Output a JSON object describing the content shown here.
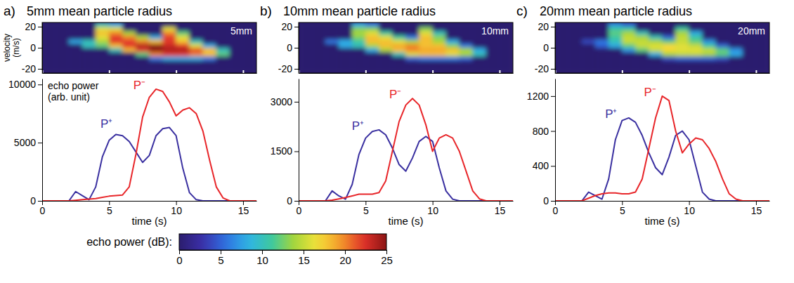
{
  "chart_data": [
    {
      "type": "heatmap",
      "letter": "a)",
      "title": "5mm mean particle radius",
      "label": "5mm",
      "y_label": "velocity (m/s)",
      "xlim": [
        0,
        16
      ],
      "xticks": [
        0,
        5,
        10,
        15
      ],
      "ylim": [
        -24,
        24
      ],
      "yticks": [
        -20,
        0,
        20
      ],
      "tick_labels": "y",
      "cells": {
        "x": [
          0,
          1,
          2,
          3,
          4,
          5,
          6,
          7,
          8,
          9,
          10,
          11,
          12,
          13,
          14,
          15,
          16
        ],
        "y": [
          -24,
          -20,
          -16,
          -12,
          -8,
          -4,
          0,
          4,
          8,
          12,
          16,
          20,
          24
        ],
        "z": [
          [
            0,
            0,
            0,
            0,
            0,
            0,
            0,
            0,
            0,
            0,
            0,
            0,
            0,
            0,
            0,
            0
          ],
          [
            0,
            0,
            0,
            0,
            0,
            0,
            0,
            0,
            0,
            0,
            0,
            0,
            0,
            0,
            0,
            0
          ],
          [
            0,
            0,
            0,
            0,
            0,
            0,
            0,
            0,
            0,
            0,
            0,
            0,
            0,
            0,
            0,
            0
          ],
          [
            0,
            0,
            0,
            0,
            0,
            0,
            0,
            0,
            6,
            8,
            8,
            8,
            6,
            0,
            0,
            0
          ],
          [
            0,
            0,
            0,
            0,
            0,
            0,
            0,
            12,
            20,
            22,
            22,
            20,
            18,
            12,
            0,
            0
          ],
          [
            0,
            0,
            0,
            0,
            0,
            10,
            18,
            22,
            25,
            24,
            24,
            22,
            18,
            10,
            0,
            0
          ],
          [
            0,
            0,
            0,
            10,
            12,
            18,
            22,
            24,
            25,
            23,
            22,
            16,
            8,
            0,
            0,
            0
          ],
          [
            0,
            0,
            8,
            10,
            14,
            22,
            22,
            20,
            18,
            22,
            18,
            10,
            0,
            0,
            0,
            0
          ],
          [
            0,
            0,
            0,
            0,
            16,
            22,
            20,
            14,
            8,
            22,
            16,
            0,
            0,
            0,
            0,
            0
          ],
          [
            0,
            0,
            0,
            0,
            18,
            20,
            14,
            0,
            0,
            20,
            12,
            0,
            0,
            0,
            0,
            0
          ],
          [
            0,
            0,
            0,
            0,
            16,
            16,
            0,
            0,
            0,
            16,
            0,
            0,
            0,
            0,
            0,
            0
          ],
          [
            0,
            0,
            0,
            0,
            10,
            8,
            0,
            0,
            0,
            0,
            0,
            0,
            0,
            0,
            0,
            0
          ]
        ]
      }
    },
    {
      "type": "line",
      "annotation": [
        "echo power",
        "(arb. unit)"
      ],
      "x_label": "time (s)",
      "xlim": [
        0,
        16
      ],
      "xticks": [
        0,
        5,
        10,
        15
      ],
      "ylim": [
        0,
        10500
      ],
      "yticks": [
        0,
        5000,
        10000
      ],
      "x": [
        0,
        0.5,
        1,
        1.5,
        2,
        2.5,
        3,
        3.5,
        4,
        4.5,
        5,
        5.5,
        6,
        6.5,
        7,
        7.5,
        8,
        8.5,
        9,
        9.5,
        10,
        10.5,
        11,
        11.5,
        12,
        12.5,
        13,
        13.5,
        14,
        14.5,
        15,
        15.5,
        16
      ],
      "series": [
        {
          "name": "P⁺",
          "color": "#3a30a0",
          "values": [
            0,
            0,
            0,
            0,
            0,
            800,
            450,
            100,
            1200,
            3800,
            5200,
            5700,
            5600,
            5100,
            4200,
            3300,
            3900,
            5600,
            6200,
            6300,
            5600,
            2800,
            700,
            100,
            0,
            0,
            0,
            0,
            0,
            0,
            0,
            0,
            0
          ]
        },
        {
          "name": "P⁻",
          "color": "#e8262a",
          "values": [
            0,
            0,
            0,
            0,
            0,
            50,
            100,
            150,
            200,
            300,
            400,
            450,
            500,
            1200,
            4000,
            7200,
            8900,
            9600,
            9400,
            8500,
            7300,
            7800,
            8000,
            7500,
            6000,
            3500,
            1200,
            250,
            0,
            0,
            0,
            0,
            0
          ]
        }
      ]
    },
    {
      "type": "heatmap",
      "letter": "b)",
      "title": "10mm mean particle radius",
      "label": "10mm",
      "xlim": [
        0,
        16
      ],
      "xticks": [
        0,
        5,
        10,
        15
      ],
      "ylim": [
        -24,
        24
      ],
      "yticks": [
        -20,
        0,
        20
      ],
      "tick_labels": "y",
      "cells": {
        "x": [
          0,
          1,
          2,
          3,
          4,
          5,
          6,
          7,
          8,
          9,
          10,
          11,
          12,
          13,
          14,
          15,
          16
        ],
        "y": [
          -24,
          -20,
          -16,
          -12,
          -8,
          -4,
          0,
          4,
          8,
          12,
          16,
          20,
          24
        ],
        "z": [
          [
            0,
            0,
            0,
            0,
            0,
            0,
            0,
            0,
            0,
            0,
            0,
            0,
            0,
            0,
            0,
            0
          ],
          [
            0,
            0,
            0,
            0,
            0,
            0,
            0,
            0,
            0,
            0,
            0,
            0,
            0,
            0,
            0,
            0
          ],
          [
            0,
            0,
            0,
            0,
            0,
            0,
            0,
            0,
            0,
            0,
            0,
            0,
            0,
            0,
            0,
            0
          ],
          [
            0,
            0,
            0,
            0,
            0,
            0,
            0,
            0,
            5,
            6,
            6,
            6,
            5,
            0,
            0,
            0
          ],
          [
            0,
            0,
            0,
            0,
            0,
            0,
            0,
            10,
            16,
            18,
            18,
            16,
            14,
            10,
            0,
            0
          ],
          [
            0,
            0,
            0,
            0,
            0,
            8,
            14,
            18,
            20,
            19,
            19,
            18,
            14,
            8,
            0,
            0
          ],
          [
            0,
            0,
            0,
            8,
            10,
            14,
            18,
            19,
            20,
            18,
            18,
            13,
            6,
            0,
            0,
            0
          ],
          [
            0,
            0,
            6,
            8,
            11,
            18,
            18,
            16,
            14,
            18,
            14,
            8,
            0,
            0,
            0,
            0
          ],
          [
            0,
            0,
            0,
            0,
            13,
            18,
            16,
            11,
            6,
            18,
            13,
            0,
            0,
            0,
            0,
            0
          ],
          [
            0,
            0,
            0,
            0,
            14,
            16,
            11,
            0,
            0,
            16,
            10,
            0,
            0,
            0,
            0,
            0
          ],
          [
            0,
            0,
            0,
            0,
            13,
            13,
            0,
            0,
            0,
            13,
            0,
            0,
            0,
            0,
            0,
            0
          ],
          [
            0,
            0,
            0,
            0,
            8,
            6,
            0,
            0,
            0,
            0,
            0,
            0,
            0,
            0,
            0,
            0
          ]
        ]
      }
    },
    {
      "type": "line",
      "x_label": "time (s)",
      "xlim": [
        0,
        16
      ],
      "xticks": [
        0,
        5,
        10,
        15
      ],
      "ylim": [
        0,
        3700
      ],
      "yticks": [
        0,
        1500,
        3000
      ],
      "x": [
        0,
        0.5,
        1,
        1.5,
        2,
        2.5,
        3,
        3.5,
        4,
        4.5,
        5,
        5.5,
        6,
        6.5,
        7,
        7.5,
        8,
        8.5,
        9,
        9.5,
        10,
        10.5,
        11,
        11.5,
        12,
        12.5,
        13,
        13.5,
        14,
        14.5,
        15,
        15.5,
        16
      ],
      "series": [
        {
          "name": "P⁺",
          "color": "#3a30a0",
          "values": [
            0,
            0,
            0,
            0,
            0,
            300,
            150,
            50,
            500,
            1400,
            1900,
            2100,
            2150,
            2000,
            1600,
            1100,
            900,
            1300,
            1800,
            1950,
            1800,
            1000,
            300,
            50,
            0,
            0,
            0,
            0,
            0,
            0,
            0,
            0,
            0
          ]
        },
        {
          "name": "P⁻",
          "color": "#e8262a",
          "values": [
            0,
            0,
            0,
            0,
            0,
            20,
            60,
            100,
            150,
            200,
            200,
            200,
            250,
            600,
            1500,
            2400,
            2900,
            3100,
            2900,
            2300,
            1500,
            1900,
            2000,
            1900,
            1500,
            900,
            300,
            60,
            0,
            0,
            0,
            0,
            0
          ]
        }
      ]
    },
    {
      "type": "heatmap",
      "letter": "c)",
      "title": "20mm mean particle radius",
      "label": "20mm",
      "xlim": [
        0,
        16
      ],
      "xticks": [
        0,
        5,
        10,
        15
      ],
      "ylim": [
        -24,
        24
      ],
      "yticks": [
        -20,
        0,
        20
      ],
      "tick_labels": "y",
      "cells": {
        "x": [
          0,
          1,
          2,
          3,
          4,
          5,
          6,
          7,
          8,
          9,
          10,
          11,
          12,
          13,
          14,
          15,
          16
        ],
        "y": [
          -24,
          -20,
          -16,
          -12,
          -8,
          -4,
          0,
          4,
          8,
          12,
          16,
          20,
          24
        ],
        "z": [
          [
            0,
            0,
            0,
            0,
            0,
            0,
            0,
            0,
            0,
            0,
            0,
            0,
            0,
            0,
            0,
            0
          ],
          [
            0,
            0,
            0,
            0,
            0,
            0,
            0,
            0,
            0,
            0,
            0,
            0,
            0,
            0,
            0,
            0
          ],
          [
            0,
            0,
            0,
            0,
            0,
            0,
            0,
            0,
            0,
            0,
            0,
            0,
            0,
            0,
            0,
            0
          ],
          [
            0,
            0,
            0,
            0,
            0,
            0,
            0,
            0,
            4,
            5,
            5,
            5,
            4,
            0,
            0,
            0
          ],
          [
            0,
            0,
            0,
            0,
            0,
            0,
            0,
            8,
            14,
            15,
            15,
            14,
            12,
            8,
            0,
            0
          ],
          [
            0,
            0,
            0,
            0,
            0,
            7,
            12,
            15,
            17,
            16,
            16,
            15,
            12,
            7,
            0,
            0
          ],
          [
            0,
            0,
            0,
            5,
            8,
            12,
            15,
            16,
            17,
            16,
            15,
            11,
            5,
            0,
            0,
            0
          ],
          [
            0,
            0,
            4,
            6,
            10,
            15,
            15,
            14,
            12,
            15,
            12,
            7,
            0,
            0,
            0,
            0
          ],
          [
            0,
            0,
            0,
            0,
            11,
            15,
            14,
            10,
            5,
            15,
            11,
            0,
            0,
            0,
            0,
            0
          ],
          [
            0,
            0,
            0,
            0,
            12,
            14,
            10,
            0,
            0,
            14,
            8,
            0,
            0,
            0,
            0,
            0
          ],
          [
            0,
            0,
            0,
            0,
            11,
            11,
            0,
            0,
            0,
            11,
            0,
            0,
            0,
            0,
            0,
            0
          ],
          [
            0,
            0,
            0,
            0,
            7,
            5,
            0,
            0,
            0,
            0,
            0,
            0,
            0,
            0,
            0,
            0
          ]
        ]
      }
    },
    {
      "type": "line",
      "x_label": "time (s)",
      "xlim": [
        0,
        16
      ],
      "xticks": [
        0,
        5,
        10,
        15
      ],
      "ylim": [
        0,
        1400
      ],
      "yticks": [
        0,
        400,
        800,
        1200
      ],
      "x": [
        0,
        0.5,
        1,
        1.5,
        2,
        2.5,
        3,
        3.5,
        4,
        4.5,
        5,
        5.5,
        6,
        6.5,
        7,
        7.5,
        8,
        8.5,
        9,
        9.5,
        10,
        10.5,
        11,
        11.5,
        12,
        12.5,
        13,
        13.5,
        14,
        14.5,
        15,
        15.5,
        16
      ],
      "series": [
        {
          "name": "P⁺",
          "color": "#3a30a0",
          "values": [
            0,
            0,
            0,
            0,
            0,
            100,
            60,
            20,
            250,
            700,
            920,
            950,
            900,
            750,
            550,
            380,
            300,
            500,
            750,
            800,
            700,
            400,
            100,
            20,
            0,
            0,
            0,
            0,
            0,
            0,
            0,
            0,
            0
          ]
        },
        {
          "name": "P⁻",
          "color": "#e8262a",
          "values": [
            0,
            0,
            0,
            0,
            0,
            30,
            60,
            80,
            90,
            90,
            80,
            80,
            100,
            250,
            600,
            950,
            1200,
            1150,
            800,
            550,
            650,
            720,
            700,
            600,
            450,
            250,
            80,
            20,
            0,
            0,
            0,
            0,
            0
          ]
        }
      ]
    }
  ],
  "color_bar": {
    "label": "echo power (dB):",
    "range": [
      0,
      25
    ],
    "ticks": [
      0,
      5,
      10,
      15,
      20,
      25
    ]
  }
}
